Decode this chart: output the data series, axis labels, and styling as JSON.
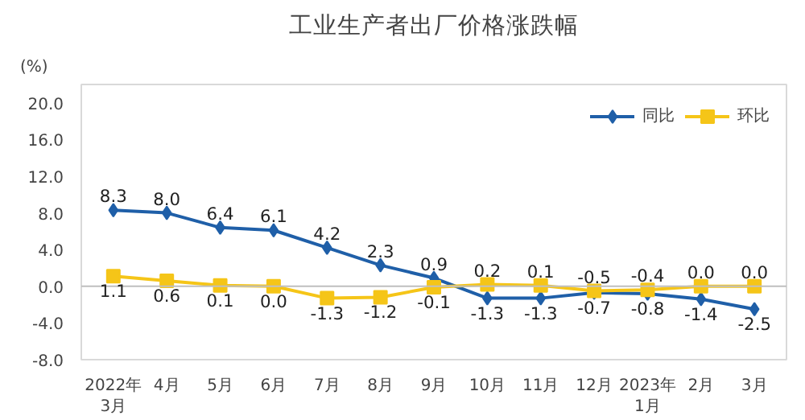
{
  "chart_data": {
    "type": "line",
    "title": "工业生产者出厂价格涨跌幅",
    "ylabel": "(%)",
    "categories": [
      "2022年\n3月",
      "4月",
      "5月",
      "6月",
      "7月",
      "8月",
      "9月",
      "10月",
      "11月",
      "12月",
      "2023年\n1月",
      "2月",
      "3月"
    ],
    "series": [
      {
        "name": "同比",
        "color": "#1f5fa8",
        "marker": "diamond",
        "values": [
          8.3,
          8.0,
          6.4,
          6.1,
          4.2,
          2.3,
          0.9,
          -1.3,
          -1.3,
          -0.7,
          -0.8,
          -1.4,
          -2.5
        ],
        "value_labels": [
          "8.3",
          "8.0",
          "6.4",
          "6.1",
          "4.2",
          "2.3",
          "0.9",
          "-1.3",
          "-1.3",
          "-0.7",
          "-0.8",
          "-1.4",
          "-2.5"
        ]
      },
      {
        "name": "环比",
        "color": "#f5c518",
        "marker": "square",
        "values": [
          1.1,
          0.6,
          0.1,
          0.0,
          -1.3,
          -1.2,
          -0.1,
          0.2,
          0.1,
          -0.5,
          -0.4,
          0.0,
          0.0
        ],
        "value_labels": [
          "1.1",
          "0.6",
          "0.1",
          "0.0",
          "-1.3",
          "-1.2",
          "-0.1",
          "0.2",
          "0.1",
          "-0.5",
          "-0.4",
          "0.0",
          "0.0"
        ]
      }
    ],
    "ylim": [
      -8,
      22
    ],
    "yticks": [
      {
        "value": -8,
        "label": "-8.0"
      },
      {
        "value": -4,
        "label": "-4.0"
      },
      {
        "value": 0,
        "label": "0.0"
      },
      {
        "value": 4,
        "label": "4.0"
      },
      {
        "value": 8,
        "label": "8.0"
      },
      {
        "value": 12,
        "label": "12.0"
      },
      {
        "value": 16,
        "label": "16.0"
      },
      {
        "value": 20,
        "label": "20.0"
      }
    ],
    "ref_lines": [
      {
        "axis": "y",
        "value": 0,
        "color": "#bfbfbf"
      }
    ],
    "legend": "top right",
    "grid": false,
    "line_style": "solid"
  }
}
